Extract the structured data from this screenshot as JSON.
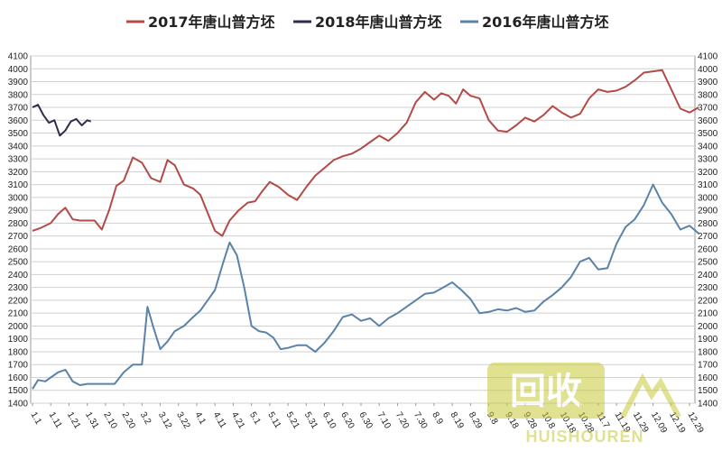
{
  "chart_data": {
    "type": "line",
    "ylim": [
      1400,
      4100
    ],
    "y_ticks": [
      1400,
      1500,
      1600,
      1700,
      1800,
      1900,
      2000,
      2100,
      2200,
      2300,
      2400,
      2500,
      2600,
      2700,
      2800,
      2900,
      3000,
      3100,
      3200,
      3300,
      3400,
      3500,
      3600,
      3700,
      3800,
      3900,
      4000,
      4100
    ],
    "x_tick_labels": [
      "1.1",
      "1.11",
      "1.21",
      "1.31",
      "2.10",
      "2.20",
      "3.2",
      "3.12",
      "3.22",
      "4.1",
      "4.11",
      "4.21",
      "5.1",
      "5.11",
      "5.21",
      "5.31",
      "6.10",
      "6.20",
      "6.30",
      "7.10",
      "7.20",
      "7.30",
      "8.9",
      "8.19",
      "8.29",
      "9.8",
      "9.18",
      "9.28",
      "10.8",
      "10.18",
      "10.28",
      "11.7",
      "11.19",
      "11.29",
      "12.09",
      "12.19",
      "12.29"
    ],
    "grid": true,
    "legend_position": "top",
    "series": [
      {
        "name": "2017年唐山普方坯",
        "color": "#b24a48",
        "x_index": [
          0,
          0.4,
          1,
          1.4,
          1.8,
          2.2,
          2.6,
          3,
          3.4,
          3.8,
          4.2,
          4.6,
          5,
          5.5,
          6,
          6.5,
          7,
          7.4,
          7.8,
          8.3,
          8.8,
          9.2,
          9.6,
          10,
          10.4,
          10.8,
          11.3,
          11.8,
          12.2,
          12.6,
          13,
          13.5,
          14,
          14.5,
          15,
          15.5,
          16,
          16.5,
          17,
          17.5,
          18,
          18.5,
          19,
          19.5,
          20,
          20.5,
          21,
          21.5,
          22,
          22.4,
          22.8,
          23.2,
          23.6,
          24,
          24.5,
          25,
          25.5,
          26,
          26.5,
          27,
          27.5,
          28,
          28.5,
          29,
          29.5,
          30,
          30.5,
          31,
          31.5,
          32,
          32.5,
          33,
          33.5,
          34,
          34.5,
          35,
          35.5,
          36,
          36.5
        ],
        "values": [
          2740,
          2760,
          2800,
          2870,
          2920,
          2830,
          2820,
          2820,
          2820,
          2750,
          2900,
          3090,
          3130,
          3310,
          3270,
          3150,
          3120,
          3290,
          3250,
          3100,
          3070,
          3020,
          2880,
          2740,
          2700,
          2820,
          2900,
          2960,
          2970,
          3050,
          3120,
          3080,
          3020,
          2980,
          3080,
          3170,
          3230,
          3290,
          3320,
          3340,
          3380,
          3430,
          3480,
          3440,
          3500,
          3580,
          3740,
          3820,
          3760,
          3810,
          3790,
          3730,
          3840,
          3790,
          3770,
          3600,
          3520,
          3510,
          3560,
          3620,
          3590,
          3640,
          3710,
          3660,
          3620,
          3650,
          3770,
          3840,
          3820,
          3830,
          3860,
          3910,
          3970,
          3980,
          3990,
          3840,
          3690,
          3660,
          3700
        ]
      },
      {
        "name": "2018年唐山普方坯",
        "color": "#2e2d4b",
        "x_index": [
          0,
          0.3,
          0.6,
          0.9,
          1.2,
          1.5,
          1.8,
          2.1,
          2.4,
          2.7,
          3,
          3.2
        ],
        "values": [
          3700,
          3720,
          3640,
          3580,
          3600,
          3480,
          3520,
          3590,
          3610,
          3560,
          3600,
          3590
        ]
      },
      {
        "name": "2016年唐山普方坯",
        "color": "#5b82a8",
        "x_index": [
          0,
          0.3,
          0.7,
          1,
          1.4,
          1.8,
          2.2,
          2.6,
          3,
          3.5,
          4,
          4.5,
          5,
          5.5,
          6,
          6.3,
          6.6,
          7,
          7.4,
          7.8,
          8.3,
          8.8,
          9.2,
          9.6,
          10,
          10.4,
          10.8,
          11.2,
          11.6,
          12,
          12.4,
          12.8,
          13.2,
          13.6,
          14,
          14.5,
          15,
          15.5,
          16,
          16.5,
          17,
          17.5,
          18,
          18.5,
          19,
          19.5,
          20,
          20.5,
          21,
          21.5,
          22,
          22.5,
          23,
          23.5,
          24,
          24.5,
          25,
          25.5,
          26,
          26.5,
          27,
          27.5,
          28,
          28.5,
          29,
          29.5,
          30,
          30.5,
          31,
          31.5,
          32,
          32.5,
          33,
          33.5,
          34,
          34.5,
          35,
          35.5,
          36,
          36.5
        ],
        "values": [
          1510,
          1580,
          1570,
          1600,
          1640,
          1660,
          1570,
          1540,
          1550,
          1550,
          1550,
          1550,
          1640,
          1700,
          1700,
          2150,
          2000,
          1820,
          1880,
          1960,
          2000,
          2070,
          2120,
          2200,
          2280,
          2470,
          2650,
          2550,
          2300,
          2000,
          1960,
          1950,
          1910,
          1820,
          1830,
          1850,
          1850,
          1800,
          1870,
          1960,
          2070,
          2090,
          2040,
          2060,
          2000,
          2060,
          2100,
          2150,
          2200,
          2250,
          2260,
          2300,
          2340,
          2280,
          2210,
          2100,
          2110,
          2130,
          2120,
          2140,
          2110,
          2120,
          2190,
          2240,
          2300,
          2380,
          2500,
          2530,
          2440,
          2450,
          2640,
          2770,
          2830,
          2940,
          3100,
          2960,
          2870,
          2750,
          2780,
          2720
        ]
      }
    ]
  },
  "watermark": {
    "chinese": "回收",
    "latin": "HUISHOUREN"
  }
}
